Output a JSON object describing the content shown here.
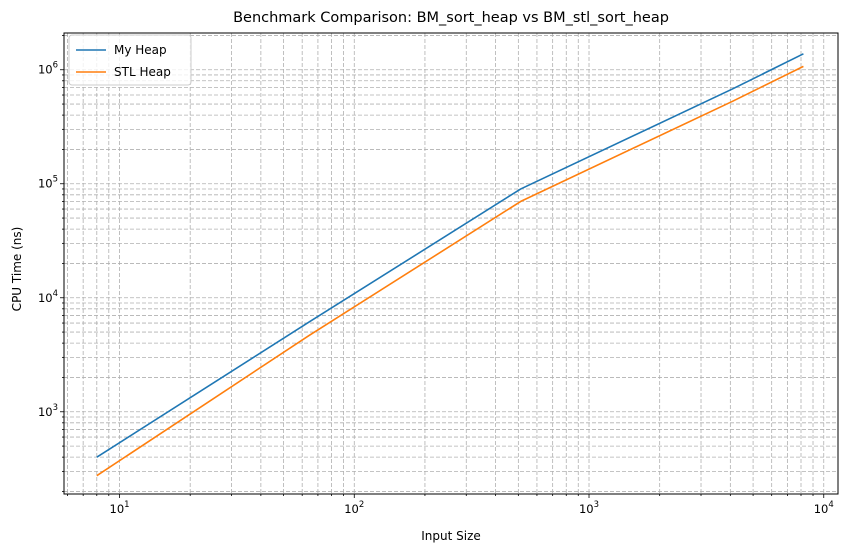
{
  "chart_data": {
    "type": "line",
    "title": "Benchmark Comparison: BM_sort_heap vs BM_stl_sort_heap",
    "xlabel": "Input Size",
    "ylabel": "CPU Time (ns)",
    "xscale": "log",
    "yscale": "log",
    "xlim": [
      5.8,
      11500
    ],
    "ylim": [
      190,
      2100000
    ],
    "grid": true,
    "grid_which": "both",
    "grid_style": "dashed",
    "legend_position": "top-left",
    "x_ticks": [
      {
        "value": 10,
        "base": "10",
        "exp": "1"
      },
      {
        "value": 100,
        "base": "10",
        "exp": "2"
      },
      {
        "value": 1000,
        "base": "10",
        "exp": "3"
      },
      {
        "value": 10000,
        "base": "10",
        "exp": "4"
      }
    ],
    "y_ticks": [
      {
        "value": 1000,
        "base": "10",
        "exp": "3"
      },
      {
        "value": 10000,
        "base": "10",
        "exp": "4"
      },
      {
        "value": 100000,
        "base": "10",
        "exp": "5"
      },
      {
        "value": 1000000,
        "base": "10",
        "exp": "6"
      }
    ],
    "x": [
      8,
      64,
      512,
      4096,
      8192
    ],
    "series": [
      {
        "name": "My Heap",
        "color": "#1f77b4",
        "values": [
          400,
          6100,
          90000,
          680000,
          1380000
        ]
      },
      {
        "name": "STL Heap",
        "color": "#ff7f0e",
        "values": [
          275,
          4650,
          70000,
          530000,
          1070000
        ]
      }
    ]
  }
}
